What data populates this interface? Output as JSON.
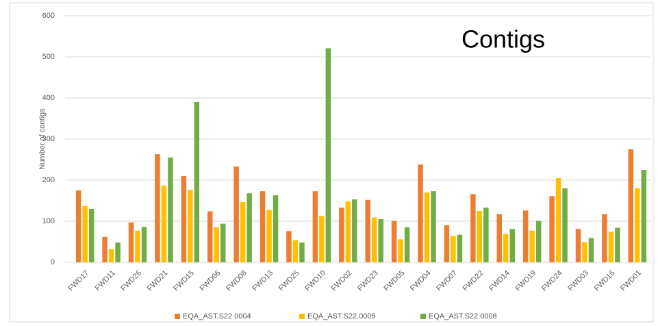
{
  "chart_data": {
    "type": "bar",
    "title": "Contigs",
    "y_label": "Number of contigs",
    "categories": [
      "FWD17",
      "FWD11",
      "FWD26",
      "FWD21",
      "FWD15",
      "FWD06",
      "FWD08",
      "FWD13",
      "FWD25",
      "FWD10",
      "FWD02",
      "FWD23",
      "FWD05",
      "FWD04",
      "FWD07",
      "FWD22",
      "FWD14",
      "FWD19",
      "FWD24",
      "FWD03",
      "FWD16",
      "FWD01"
    ],
    "series": [
      {
        "name": "EQA_AST.S22.0004",
        "color": "#ed7d31",
        "values": [
          175,
          62,
          97,
          263,
          210,
          124,
          233,
          173,
          76,
          173,
          133,
          152,
          101,
          238,
          90,
          166,
          117,
          126,
          161,
          81,
          117,
          275
        ]
      },
      {
        "name": "EQA_AST.S22.0005",
        "color": "#ffc000",
        "values": [
          137,
          32,
          77,
          187,
          176,
          85,
          147,
          127,
          54,
          113,
          148,
          109,
          56,
          170,
          64,
          125,
          69,
          77,
          205,
          49,
          74,
          180
        ]
      },
      {
        "name": "EQA_AST.S22.0008",
        "color": "#70ad47",
        "values": [
          130,
          48,
          86,
          255,
          390,
          94,
          168,
          163,
          48,
          521,
          153,
          105,
          85,
          173,
          67,
          133,
          81,
          101,
          180,
          59,
          84,
          225
        ]
      }
    ],
    "ylim": [
      0,
      600
    ],
    "yticks": [
      0,
      100,
      200,
      300,
      400,
      500,
      600
    ],
    "grid": true,
    "legend": "bottom"
  }
}
